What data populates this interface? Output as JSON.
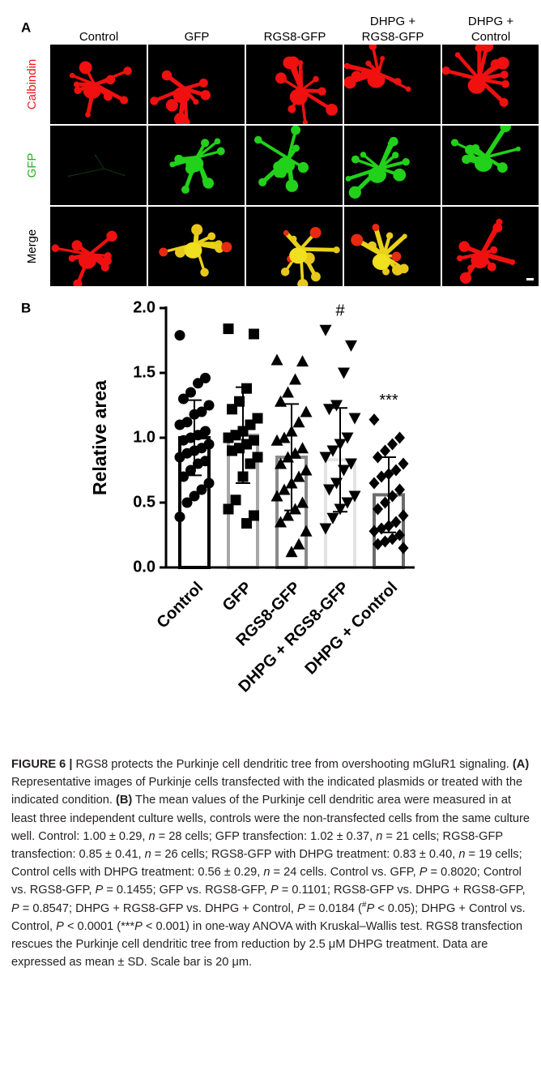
{
  "panel_a": {
    "label": "A",
    "columns": [
      [
        "Control"
      ],
      [
        "GFP"
      ],
      [
        "RGS8-GFP"
      ],
      [
        "DHPG +",
        "RGS8-GFP"
      ],
      [
        "DHPG +",
        "Control"
      ]
    ],
    "rows": [
      "Calbindin",
      "GFP",
      "Merge"
    ],
    "row_colors": [
      "#e8191c",
      "#21b41e",
      "#000000"
    ]
  },
  "chart_data": {
    "type": "bar",
    "panel_label": "B",
    "y_label": "Relative area",
    "categories": [
      "Control",
      "GFP",
      "RGS8-GFP",
      "DHPG + RGS8-GFP",
      "DHPG + Control"
    ],
    "values": [
      1.0,
      1.02,
      0.85,
      0.83,
      0.56
    ],
    "errors": [
      0.29,
      0.37,
      0.41,
      0.4,
      0.29
    ],
    "edge_colors": [
      "#000000",
      "#a8a8a8",
      "#8a8a8a",
      "#e3e3e3",
      "#6b6b6b"
    ],
    "markers": [
      "circle",
      "square",
      "triangle-up",
      "triangle-down",
      "diamond"
    ],
    "points": [
      [
        1.79,
        1.46,
        1.42,
        1.35,
        1.3,
        1.25,
        1.2,
        1.18,
        1.12,
        1.1,
        1.05,
        1.02,
        1.0,
        0.98,
        0.95,
        0.92,
        0.9,
        0.88,
        0.85,
        0.82,
        0.8,
        0.75,
        0.7,
        0.65,
        0.6,
        0.55,
        0.5,
        0.39
      ],
      [
        1.84,
        1.8,
        1.38,
        1.28,
        1.22,
        1.15,
        1.1,
        1.05,
        1.02,
        1.0,
        0.98,
        0.95,
        0.92,
        0.9,
        0.85,
        0.8,
        0.7,
        0.52,
        0.45,
        0.4,
        0.34
      ],
      [
        1.6,
        1.59,
        1.45,
        1.35,
        1.28,
        1.2,
        1.12,
        1.05,
        1.0,
        0.98,
        0.92,
        0.88,
        0.85,
        0.8,
        0.75,
        0.7,
        0.65,
        0.6,
        0.55,
        0.5,
        0.45,
        0.4,
        0.35,
        0.28,
        0.18,
        0.12
      ],
      [
        1.83,
        1.71,
        1.5,
        1.25,
        1.22,
        1.15,
        1.0,
        0.95,
        0.9,
        0.85,
        0.8,
        0.75,
        0.65,
        0.6,
        0.55,
        0.5,
        0.45,
        0.38,
        0.3
      ],
      [
        1.14,
        1.0,
        0.95,
        0.9,
        0.85,
        0.8,
        0.75,
        0.72,
        0.7,
        0.65,
        0.6,
        0.55,
        0.5,
        0.45,
        0.4,
        0.35,
        0.32,
        0.3,
        0.28,
        0.25,
        0.22,
        0.2,
        0.18,
        0.15
      ]
    ],
    "annotations": [
      {
        "category": 3,
        "text": "#"
      },
      {
        "category": 4,
        "text": "***"
      }
    ],
    "ylim": [
      0,
      2
    ],
    "yticks": [
      {
        "value": 0,
        "label": "0.0"
      },
      {
        "value": 0.5,
        "label": "0.5"
      },
      {
        "value": 1,
        "label": "1.0"
      },
      {
        "value": 1.5,
        "label": "1.5"
      },
      {
        "value": 2,
        "label": "2.0"
      }
    ]
  },
  "caption": {
    "runs": [
      {
        "text": "FIGURE 6 |",
        "bold": true
      },
      {
        "text": " RGS8 protects the Purkinje cell dendritic tree from overshooting mGluR1 signaling. "
      },
      {
        "text": "(A)",
        "bold": true
      },
      {
        "text": " Representative images of Purkinje cells transfected with the indicated plasmids or treated with the indicated condition. "
      },
      {
        "text": "(B)",
        "bold": true
      },
      {
        "text": " The mean values of the Purkinje cell dendritic area were measured in at least three independent culture wells, controls were the non-transfected cells from the same culture well. Control: 1.00 ± 0.29, "
      },
      {
        "text": "n",
        "italic": true
      },
      {
        "text": " = 28 cells; GFP transfection: 1.02 ± 0.37, "
      },
      {
        "text": "n",
        "italic": true
      },
      {
        "text": " = 21 cells; RGS8-GFP transfection: 0.85 ± 0.41, "
      },
      {
        "text": "n",
        "italic": true
      },
      {
        "text": " = 26 cells; RGS8-GFP with DHPG treatment: 0.83 ± 0.40, "
      },
      {
        "text": "n",
        "italic": true
      },
      {
        "text": " = 19 cells; Control cells with DHPG treatment: 0.56 ±  0.29, "
      },
      {
        "text": "n",
        "italic": true
      },
      {
        "text": " = 24 cells. Control vs. GFP, "
      },
      {
        "text": "P",
        "italic": true
      },
      {
        "text": " = 0.8020; Control vs. RGS8-GFP, "
      },
      {
        "text": "P",
        "italic": true
      },
      {
        "text": " = 0.1455; GFP vs. RGS8-GFP, "
      },
      {
        "text": "P",
        "italic": true
      },
      {
        "text": " = 0.1101; RGS8-GFP vs. DHPG + RGS8-GFP, "
      },
      {
        "text": "P",
        "italic": true
      },
      {
        "text": " = 0.8547; DHPG + RGS8-GFP vs. DHPG + Control, "
      },
      {
        "text": "P",
        "italic": true
      },
      {
        "text": " = 0.0184 ("
      },
      {
        "text": "#",
        "sup": true
      },
      {
        "text": "P",
        "italic": true
      },
      {
        "text": " < 0.05); DHPG + Control vs. Control, "
      },
      {
        "text": "P",
        "italic": true
      },
      {
        "text": " < 0.0001 (***"
      },
      {
        "text": "P",
        "italic": true
      },
      {
        "text": " < 0.001) in one-way ANOVA with Kruskal–Wallis test. RGS8 transfection rescues the Purkinje cell dendritic tree from reduction by 2.5 μM DHPG treatment. Data are expressed as mean ± SD. Scale bar is 20 μm."
      }
    ]
  }
}
